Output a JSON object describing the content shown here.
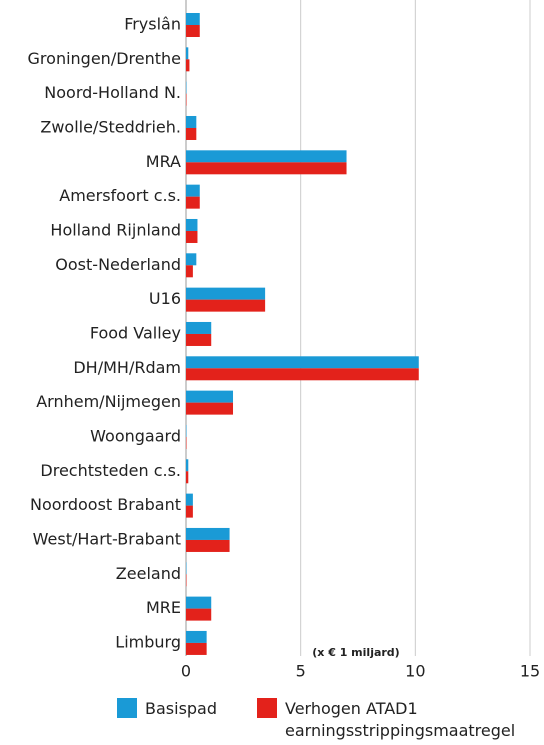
{
  "chart_data": {
    "type": "barh",
    "categories": [
      "Fryslân",
      "Groningen/Drenthe",
      "Noord-Holland N.",
      "Zwolle/Steddrieh.",
      "MRA",
      "Amersfoort c.s.",
      "Holland Rijnland",
      "Oost-Nederland",
      "U16",
      "Food Valley",
      "DH/MH/Rdam",
      "Arnhem/Nijmegen",
      "Woongaard",
      "Drechtsteden c.s.",
      "Noordoost Brabant",
      "West/Hart-Brabant",
      "Zeeland",
      "MRE",
      "Limburg"
    ],
    "series": [
      {
        "name": "Basispad",
        "color": "#1a9ad6",
        "values": [
          0.6,
          0.1,
          0.02,
          0.45,
          7.0,
          0.6,
          0.5,
          0.45,
          3.45,
          1.1,
          10.15,
          2.05,
          0.02,
          0.1,
          0.3,
          1.9,
          0.02,
          1.1,
          0.9
        ]
      },
      {
        "name": "Verhogen ATAD1 earningsstrippingsmaatregel",
        "color": "#e3221b",
        "values": [
          0.6,
          0.15,
          0.02,
          0.45,
          7.0,
          0.6,
          0.5,
          0.3,
          3.45,
          1.1,
          10.15,
          2.05,
          0.02,
          0.1,
          0.3,
          1.9,
          0.02,
          1.1,
          0.9
        ]
      }
    ],
    "xlim": [
      0,
      15
    ],
    "xticks": [
      0,
      5,
      10,
      15
    ],
    "grid": true,
    "annotation": "(x € 1 miljard)"
  }
}
